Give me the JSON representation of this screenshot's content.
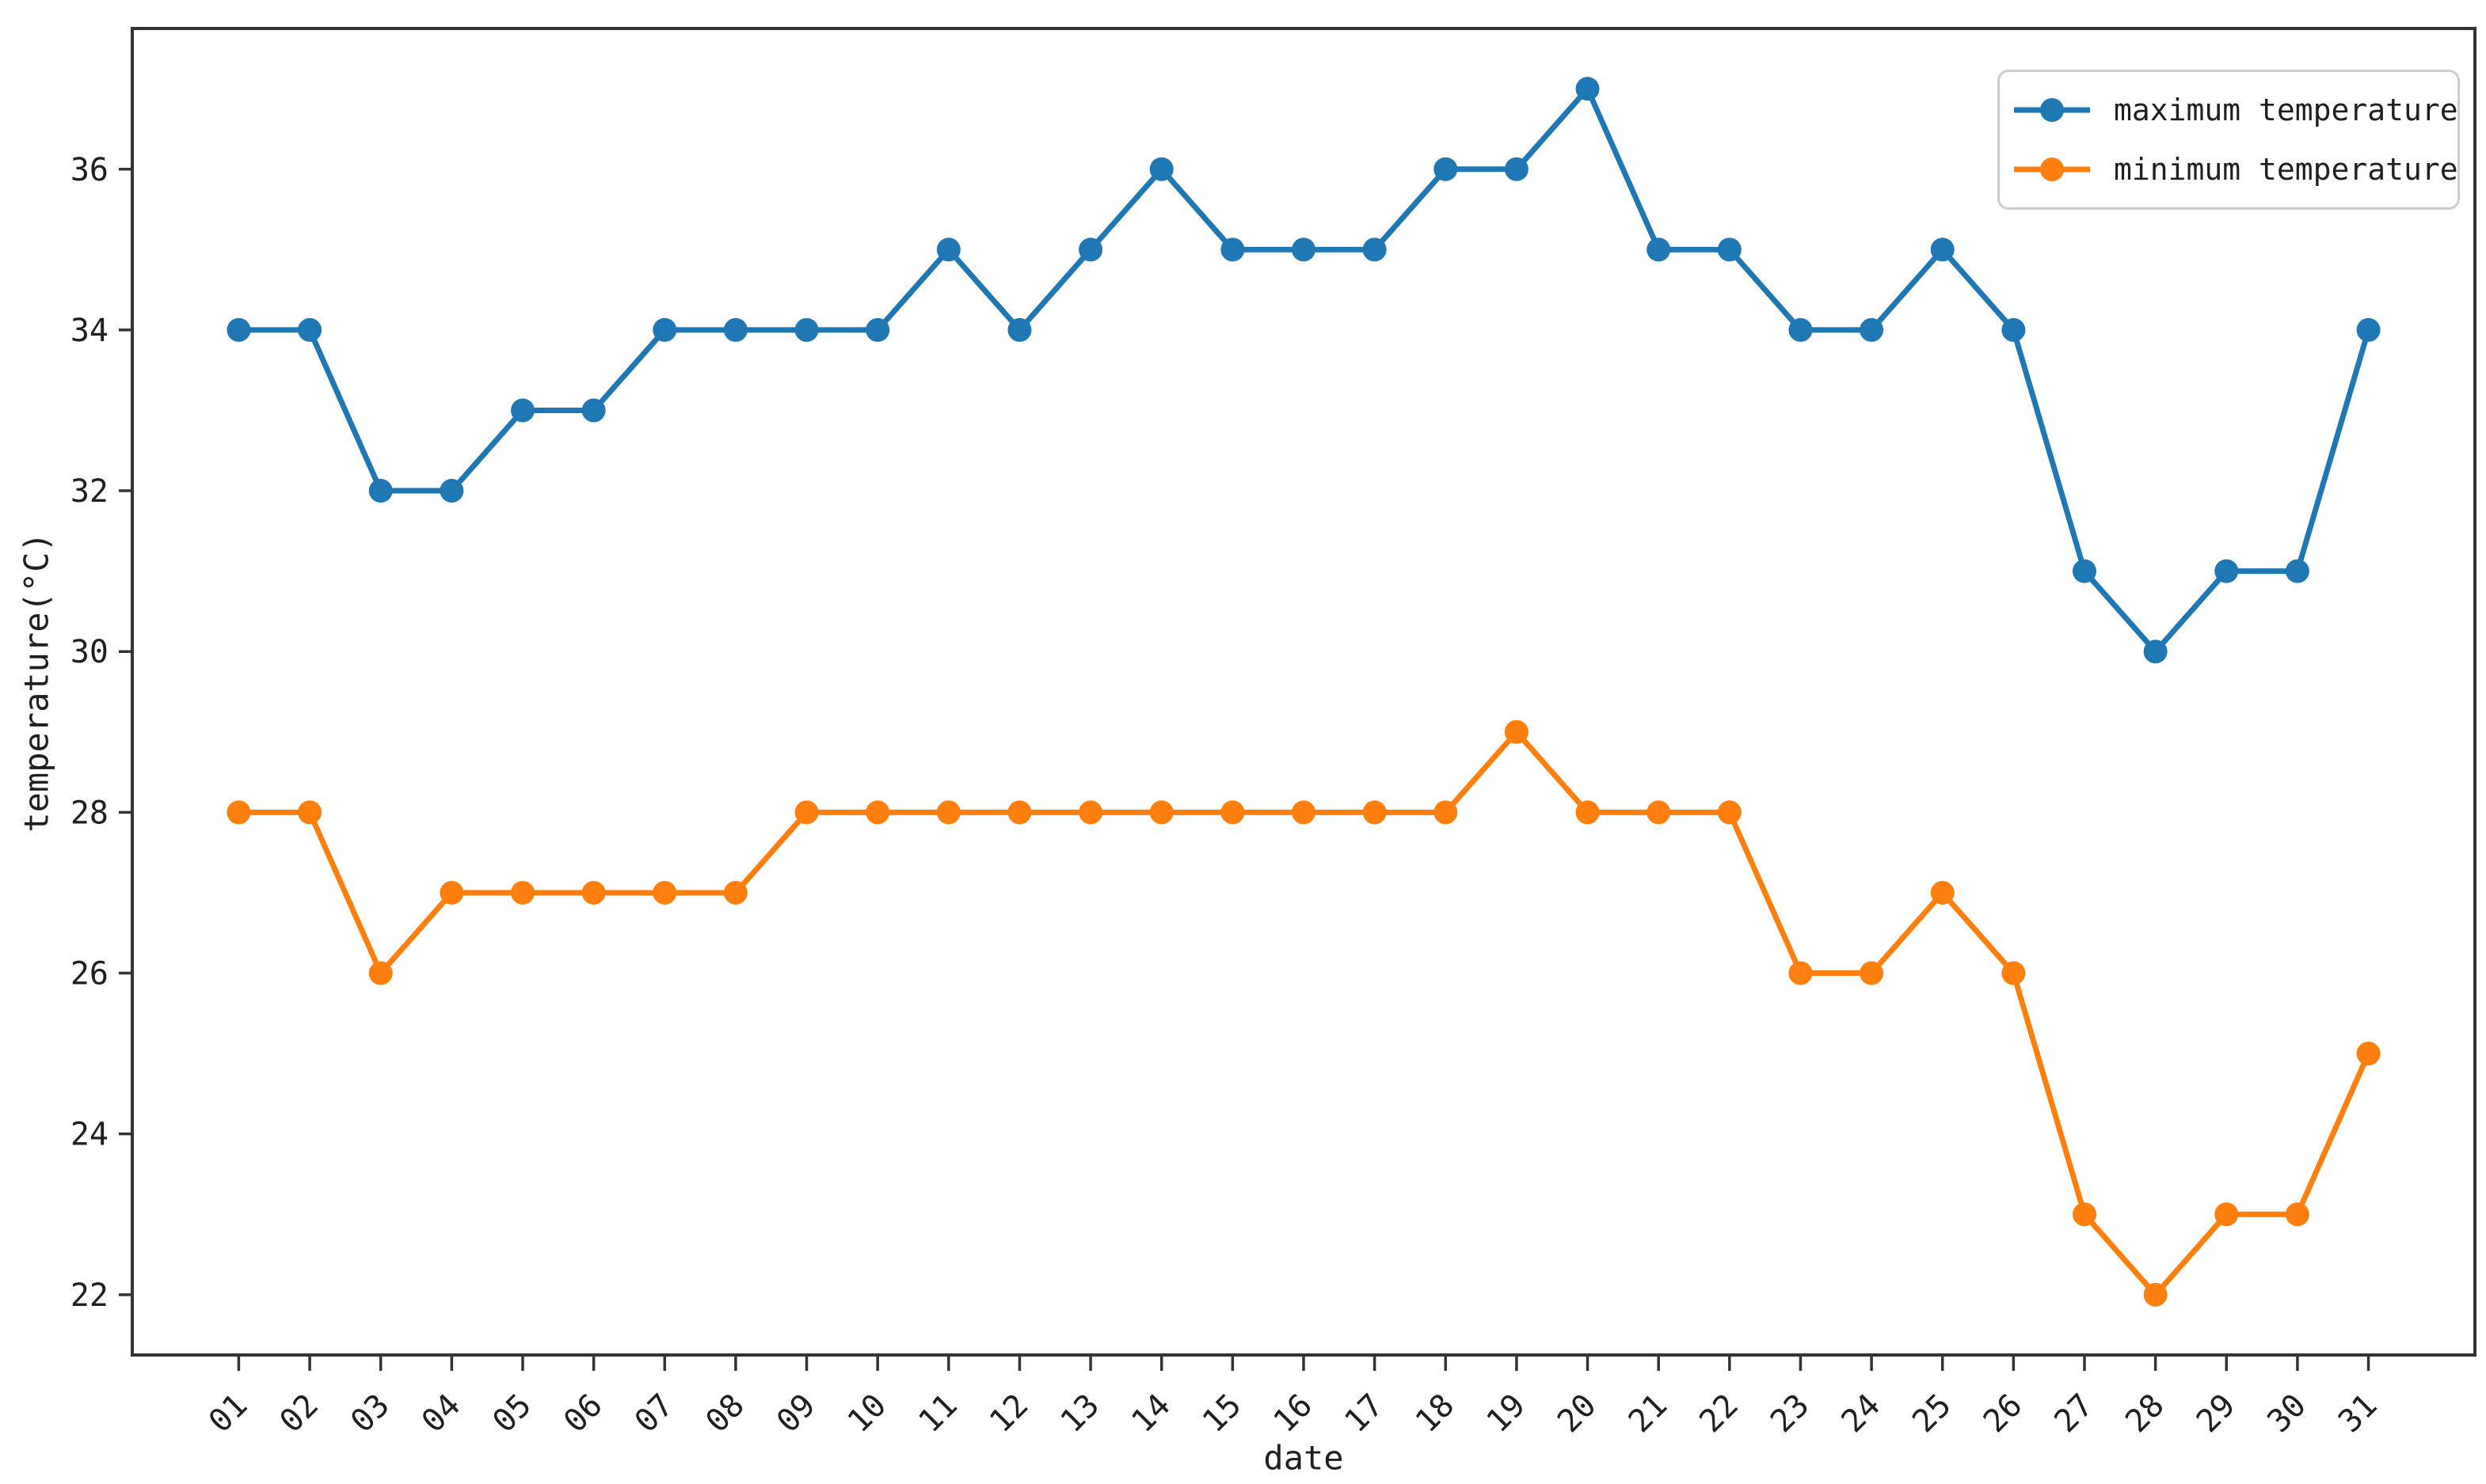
{
  "chart_data": {
    "type": "line",
    "title": "",
    "xlabel": "date",
    "ylabel": "temperature(°C)",
    "categories": [
      "01",
      "02",
      "03",
      "04",
      "05",
      "06",
      "07",
      "08",
      "09",
      "10",
      "11",
      "12",
      "13",
      "14",
      "15",
      "16",
      "17",
      "18",
      "19",
      "20",
      "21",
      "22",
      "23",
      "24",
      "25",
      "26",
      "27",
      "28",
      "29",
      "30",
      "31"
    ],
    "series": [
      {
        "name": "maximum temperature",
        "color": "#1f77b4",
        "values": [
          34,
          34,
          32,
          32,
          33,
          33,
          34,
          34,
          34,
          34,
          35,
          34,
          35,
          36,
          35,
          35,
          35,
          36,
          36,
          37,
          35,
          35,
          34,
          34,
          35,
          34,
          31,
          30,
          31,
          31,
          34
        ]
      },
      {
        "name": "minimum temperature",
        "color": "#ff7f0e",
        "values": [
          28,
          28,
          26,
          27,
          27,
          27,
          27,
          27,
          28,
          28,
          28,
          28,
          28,
          28,
          28,
          28,
          28,
          28,
          29,
          28,
          28,
          28,
          26,
          26,
          27,
          26,
          23,
          22,
          23,
          23,
          25
        ]
      }
    ],
    "yticks": [
      22,
      24,
      26,
      28,
      30,
      32,
      34,
      36
    ],
    "ylim": [
      21.25,
      37.75
    ],
    "x_margin": 1.5,
    "grid": false,
    "legend_position": "upper right",
    "marker": "circle",
    "axis_color": "#333333"
  }
}
